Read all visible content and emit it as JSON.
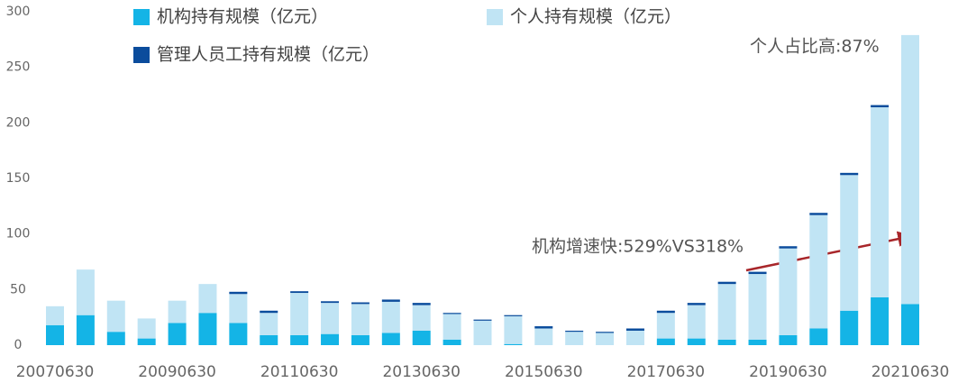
{
  "chart_data": {
    "type": "stacked-bar",
    "categories": [
      "20070630",
      null,
      null,
      null,
      "20090630",
      null,
      null,
      null,
      "20110630",
      null,
      null,
      null,
      "20130630",
      null,
      null,
      null,
      "20150630",
      null,
      null,
      null,
      "20170630",
      null,
      null,
      null,
      "20190630",
      null,
      null,
      null,
      "20210630"
    ],
    "series": [
      {
        "name": "机构持有规模（亿元）",
        "color": "#14b4e6",
        "values": [
          18,
          27,
          12,
          6,
          20,
          29,
          20,
          9,
          9,
          10,
          9,
          11,
          13,
          5,
          0,
          1,
          0,
          0,
          0,
          0,
          6,
          6,
          5,
          5,
          9,
          15,
          31,
          43,
          37
        ]
      },
      {
        "name": "个人持有规模（亿元）",
        "color": "#c0e4f4",
        "values": [
          17,
          41,
          28,
          18,
          20,
          26,
          26,
          20,
          38,
          28,
          28,
          28,
          23,
          23,
          22,
          25,
          15,
          12,
          11,
          13,
          23,
          30,
          50,
          59,
          78,
          102,
          122,
          171,
          242
        ]
      },
      {
        "name": "管理人员工持有规模（亿元）",
        "color": "#0b4c9c",
        "values": [
          0,
          0,
          0,
          0,
          0,
          0,
          2,
          2,
          1.5,
          1.5,
          1.5,
          2,
          2,
          1,
          1,
          1,
          2,
          1,
          1,
          2,
          2,
          2,
          2,
          2,
          2,
          2,
          2,
          2,
          0
        ]
      }
    ],
    "annotations": [
      "个人占比高:87%",
      "机构增速快:529%VS318%"
    ],
    "ylim": [
      0,
      300
    ],
    "yticks": [
      0,
      50,
      100,
      150,
      200,
      250,
      300
    ],
    "grid": false,
    "legend": "top"
  }
}
